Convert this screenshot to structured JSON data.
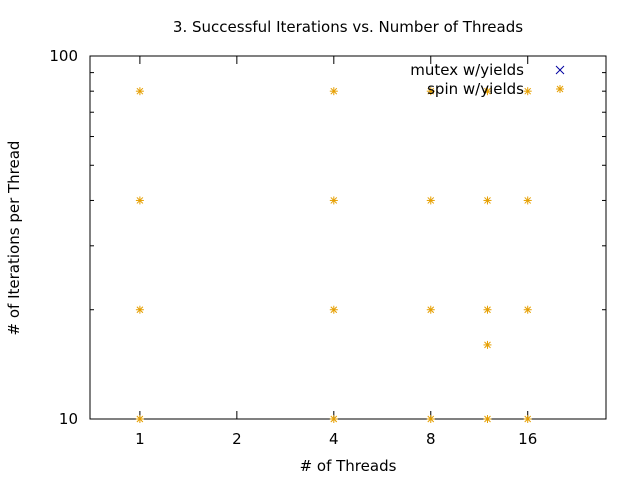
{
  "chart_data": {
    "type": "scatter",
    "title": "3. Successful Iterations vs. Number of Threads",
    "xlabel": "# of Threads",
    "ylabel": "# of Iterations per Thread",
    "x_scale": "log2",
    "y_scale": "log10",
    "xlim": [
      0.7,
      28
    ],
    "ylim": [
      10,
      100
    ],
    "x_ticks": [
      1,
      2,
      4,
      8,
      16
    ],
    "x_tick_labels": [
      "1",
      "2",
      "4",
      "8",
      "16"
    ],
    "y_ticks": [
      10,
      100
    ],
    "y_tick_labels": [
      "10",
      "100"
    ],
    "grid": false,
    "legend_position": "top-right",
    "series": [
      {
        "name": "mutex w/yields",
        "marker": "x",
        "color": "#0000a0",
        "points": []
      },
      {
        "name": "spin w/yields",
        "marker": "asterisk",
        "color": "#e69f00",
        "points": [
          [
            1,
            10
          ],
          [
            1,
            20
          ],
          [
            1,
            40
          ],
          [
            1,
            80
          ],
          [
            4,
            10
          ],
          [
            4,
            20
          ],
          [
            4,
            40
          ],
          [
            4,
            80
          ],
          [
            8,
            10
          ],
          [
            8,
            20
          ],
          [
            8,
            40
          ],
          [
            8,
            80
          ],
          [
            12,
            10
          ],
          [
            12,
            16
          ],
          [
            12,
            20
          ],
          [
            12,
            40
          ],
          [
            12,
            80
          ],
          [
            16,
            10
          ],
          [
            16,
            20
          ],
          [
            16,
            40
          ],
          [
            16,
            80
          ]
        ]
      }
    ]
  }
}
